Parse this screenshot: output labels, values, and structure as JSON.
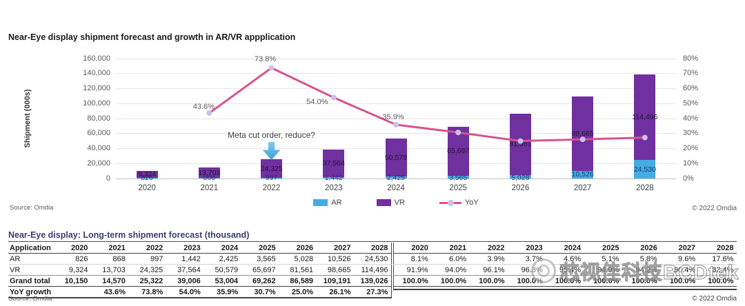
{
  "chart": {
    "title": "Near-Eye display shipment forecast and growth in AR/VR appplication",
    "y_axis_label": "Shipment (000s)",
    "annotation": "Meta cut order, reduce?",
    "source": "Source: Omdia",
    "copyright": "© 2022 Omdia",
    "legend": [
      {
        "label": "AR",
        "type": "swatch",
        "color": "#45ACE4"
      },
      {
        "label": "VR",
        "type": "swatch",
        "color": "#7030A0"
      },
      {
        "label": "YoY",
        "type": "line",
        "color": "#D6538F",
        "marker_color": "#CBC0EA"
      }
    ],
    "colors": {
      "ar": "#45ACE4",
      "vr": "#7030A0",
      "yoy_line": "#D6538F",
      "yoy_marker": "#CBC0EA",
      "grid": "#EAE3E7",
      "axis_text": "#595959",
      "bar_label_vr": "#241537",
      "bar_label_ar": "#1F3864",
      "annotation_arrow": "#4FACE4"
    }
  },
  "chart_data": {
    "type": "bar",
    "subtype": "stacked-bar-with-line",
    "title": "Near-Eye display shipment forecast and growth in AR/VR appplication",
    "categories": [
      "2020",
      "2021",
      "2022",
      "2023",
      "2024",
      "2025",
      "2026",
      "2027",
      "2028"
    ],
    "series": [
      {
        "name": "AR",
        "type": "bar",
        "axis": "left",
        "values": [
          826,
          868,
          997,
          1442,
          2425,
          3565,
          5028,
          10526,
          24530
        ]
      },
      {
        "name": "VR",
        "type": "bar",
        "axis": "left",
        "values": [
          9324,
          13703,
          24325,
          37564,
          50579,
          65697,
          81561,
          98665,
          114496
        ]
      },
      {
        "name": "YoY",
        "type": "line",
        "axis": "right",
        "unit": "%",
        "values": [
          null,
          43.6,
          73.8,
          54.0,
          35.9,
          30.7,
          25.0,
          26.1,
          27.3
        ]
      }
    ],
    "left_axis": {
      "label": "Shipment (000s)",
      "min": 0,
      "max": 160000,
      "step": 20000
    },
    "right_axis": {
      "min": 0,
      "max": 80,
      "step": 10,
      "unit": "%"
    },
    "grid": true,
    "legend_position": "bottom",
    "labeled_line_points": [
      "2021",
      "2022",
      "2023",
      "2024"
    ],
    "annotations": [
      {
        "text": "Meta cut order, reduce?",
        "category": "2022",
        "shape": "arrow-down"
      }
    ]
  },
  "table": {
    "title": "Near-Eye display: Long-term shipment forecast (thousand)",
    "col_header": "Application",
    "years": [
      "2020",
      "2021",
      "2022",
      "2023",
      "2024",
      "2025",
      "2026",
      "2027",
      "2028"
    ],
    "rows": [
      {
        "label": "AR",
        "style": "r-ar",
        "values": [
          "826",
          "868",
          "997",
          "1,442",
          "2,425",
          "3,565",
          "5,028",
          "10,526",
          "24,530"
        ],
        "shares": [
          "8.1%",
          "6.0%",
          "3.9%",
          "3.7%",
          "4.6%",
          "5.1%",
          "5.8%",
          "9.6%",
          "17.6%"
        ]
      },
      {
        "label": "VR",
        "style": "r-vr",
        "values": [
          "9,324",
          "13,703",
          "24,325",
          "37,564",
          "50,579",
          "65,697",
          "81,561",
          "98,665",
          "114,496"
        ],
        "shares": [
          "91.9%",
          "94.0%",
          "96.1%",
          "96.3%",
          "95.4%",
          "94.9%",
          "94.2%",
          "90.4%",
          "82.4%"
        ]
      },
      {
        "label": "Grand total",
        "style": "r-total",
        "values": [
          "10,150",
          "14,570",
          "25,322",
          "39,006",
          "53,004",
          "69,262",
          "86,589",
          "109,191",
          "139,026"
        ],
        "shares": [
          "100.0%",
          "100.0%",
          "100.0%",
          "100.0%",
          "100.0%",
          "100.0%",
          "100.0%",
          "100.0%",
          "100.0%"
        ]
      },
      {
        "label": "YoY growth",
        "style": "r-yoy",
        "values": [
          "",
          "43.6%",
          "73.8%",
          "54.0%",
          "35.9%",
          "30.7%",
          "25.0%",
          "26.1%",
          "27.3%"
        ],
        "shares": [
          "",
          "",
          "",
          "",
          "",
          "",
          "",
          "",
          ""
        ]
      }
    ],
    "source": "Source: Omdia",
    "copyright": "© 2022 Omdia"
  },
  "watermark": {
    "text": "芯视佳科技BCDtek"
  }
}
